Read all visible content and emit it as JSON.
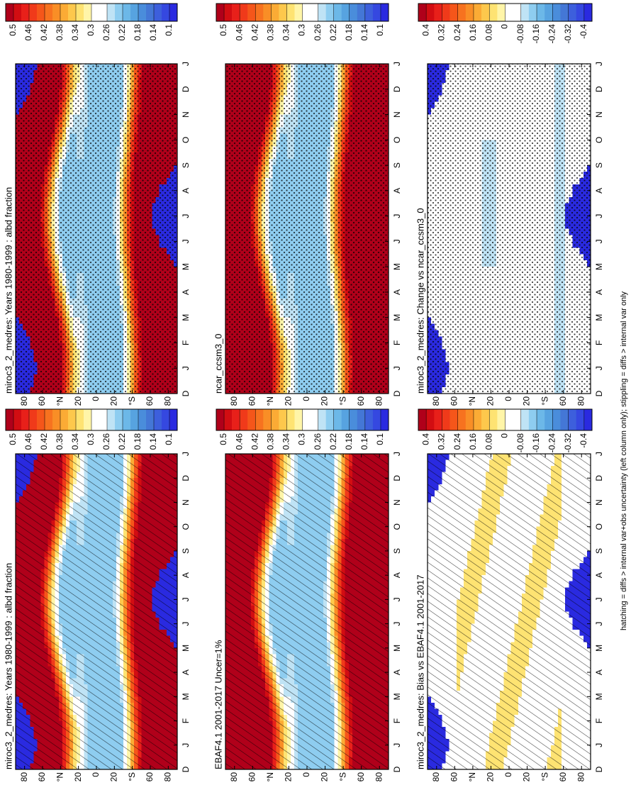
{
  "chart_data": [
    {
      "type": "heatmap",
      "title": "miroc3_2_medres: Years 1980-1999 : albd fraction",
      "categories": [
        "D",
        "J",
        "F",
        "M",
        "A",
        "M",
        "J",
        "J",
        "A",
        "S",
        "O",
        "N",
        "D",
        "J"
      ],
      "ylim": [
        -90,
        90
      ],
      "yticks": [
        80,
        60,
        {
          "value": 40,
          "label": "°N"
        },
        20,
        0,
        {
          "value": -20,
          "label": "20"
        },
        {
          "value": -40,
          "label": "°S"
        },
        {
          "value": -60,
          "label": "60"
        },
        {
          "value": -80,
          "label": "80"
        }
      ],
      "overlay": "hatching",
      "colorbar": {
        "clim": [
          0.52,
          0.08
        ],
        "ticks": [
          0.5,
          0.46,
          0.42,
          0.38,
          0.34,
          0.3,
          0.26,
          0.22,
          0.18,
          0.14,
          0.1
        ],
        "colors": [
          "#b0001a",
          "#d20d12",
          "#e8201a",
          "#f03a1a",
          "#f5561a",
          "#f7721f",
          "#f98e26",
          "#fbab35",
          "#fdc84c",
          "#fee372",
          "#fff5a8",
          "#ffffff",
          "#ffffff",
          "#bfe3f5",
          "#8ecdf0",
          "#6cb8e8",
          "#57a3e0",
          "#4a8ddb",
          "#4477d6",
          "#3d5fdc",
          "#3548e0",
          "#2a2ae0"
        ]
      }
    },
    {
      "type": "heatmap",
      "title": "miroc3_2_medres: Years 1980-1999 : albd fraction",
      "categories": [
        "D",
        "J",
        "F",
        "M",
        "A",
        "M",
        "J",
        "J",
        "A",
        "S",
        "O",
        "N",
        "D",
        "J"
      ],
      "ylim": [
        -90,
        90
      ],
      "yticks": [
        80,
        60,
        {
          "value": 40,
          "label": "°N"
        },
        20,
        0,
        {
          "value": -20,
          "label": "20"
        },
        {
          "value": -40,
          "label": "°S"
        },
        {
          "value": -60,
          "label": "60"
        },
        {
          "value": -80,
          "label": "80"
        }
      ],
      "overlay": "stippling",
      "colorbar": {
        "clim": [
          0.52,
          0.08
        ],
        "ticks": [
          0.5,
          0.46,
          0.42,
          0.38,
          0.34,
          0.3,
          0.26,
          0.22,
          0.18,
          0.14,
          0.1
        ],
        "colors": [
          "#b0001a",
          "#d20d12",
          "#e8201a",
          "#f03a1a",
          "#f5561a",
          "#f7721f",
          "#f98e26",
          "#fbab35",
          "#fdc84c",
          "#fee372",
          "#fff5a8",
          "#ffffff",
          "#ffffff",
          "#bfe3f5",
          "#8ecdf0",
          "#6cb8e8",
          "#57a3e0",
          "#4a8ddb",
          "#4477d6",
          "#3d5fdc",
          "#3548e0",
          "#2a2ae0"
        ]
      }
    },
    {
      "type": "heatmap",
      "title": "EBAF4.1 2001-2017 Uncer=1%",
      "categories": [
        "D",
        "J",
        "F",
        "M",
        "A",
        "M",
        "J",
        "J",
        "A",
        "S",
        "O",
        "N",
        "D",
        "J"
      ],
      "ylim": [
        -90,
        90
      ],
      "yticks": [
        80,
        60,
        {
          "value": 40,
          "label": "°N"
        },
        20,
        0,
        {
          "value": -20,
          "label": "20"
        },
        {
          "value": -40,
          "label": "°S"
        },
        {
          "value": -60,
          "label": "60"
        },
        {
          "value": -80,
          "label": "80"
        }
      ],
      "overlay": "hatching",
      "colorbar": {
        "clim": [
          0.52,
          0.08
        ],
        "ticks": [
          0.5,
          0.46,
          0.42,
          0.38,
          0.34,
          0.3,
          0.26,
          0.22,
          0.18,
          0.14,
          0.1
        ],
        "colors": [
          "#b0001a",
          "#d20d12",
          "#e8201a",
          "#f03a1a",
          "#f5561a",
          "#f7721f",
          "#f98e26",
          "#fbab35",
          "#fdc84c",
          "#fee372",
          "#fff5a8",
          "#ffffff",
          "#ffffff",
          "#bfe3f5",
          "#8ecdf0",
          "#6cb8e8",
          "#57a3e0",
          "#4a8ddb",
          "#4477d6",
          "#3d5fdc",
          "#3548e0",
          "#2a2ae0"
        ]
      }
    },
    {
      "type": "heatmap",
      "title": "ncar_ccsm3_0",
      "categories": [
        "D",
        "J",
        "F",
        "M",
        "A",
        "M",
        "J",
        "J",
        "A",
        "S",
        "O",
        "N",
        "D",
        "J"
      ],
      "ylim": [
        -90,
        90
      ],
      "yticks": [
        80,
        60,
        {
          "value": 40,
          "label": "°N"
        },
        20,
        0,
        {
          "value": -20,
          "label": "20"
        },
        {
          "value": -40,
          "label": "°S"
        },
        {
          "value": -60,
          "label": "60"
        },
        {
          "value": -80,
          "label": "80"
        }
      ],
      "overlay": "stippling",
      "colorbar": {
        "clim": [
          0.52,
          0.08
        ],
        "ticks": [
          0.5,
          0.46,
          0.42,
          0.38,
          0.34,
          0.3,
          0.26,
          0.22,
          0.18,
          0.14,
          0.1
        ],
        "colors": [
          "#b0001a",
          "#d20d12",
          "#e8201a",
          "#f03a1a",
          "#f5561a",
          "#f7721f",
          "#f98e26",
          "#fbab35",
          "#fdc84c",
          "#fee372",
          "#fff5a8",
          "#ffffff",
          "#ffffff",
          "#bfe3f5",
          "#8ecdf0",
          "#6cb8e8",
          "#57a3e0",
          "#4a8ddb",
          "#4477d6",
          "#3d5fdc",
          "#3548e0",
          "#2a2ae0"
        ]
      }
    },
    {
      "type": "heatmap",
      "title": "miroc3_2_medres: Bias vs EBAF4.1 2001-2017",
      "categories": [
        "D",
        "J",
        "F",
        "M",
        "A",
        "M",
        "J",
        "J",
        "A",
        "S",
        "O",
        "N",
        "D",
        "J"
      ],
      "ylim": [
        -90,
        90
      ],
      "yticks": [
        80,
        60,
        {
          "value": 40,
          "label": "°N"
        },
        20,
        0,
        {
          "value": -20,
          "label": "20"
        },
        {
          "value": -40,
          "label": "°S"
        },
        {
          "value": -60,
          "label": "60"
        },
        {
          "value": -80,
          "label": "80"
        }
      ],
      "overlay": "hatching",
      "colorbar": {
        "clim": [
          0.44,
          -0.44
        ],
        "ticks": [
          0.4,
          0.32,
          0.24,
          0.16,
          0.08,
          0,
          -0.08,
          -0.16,
          -0.24,
          -0.32,
          -0.4
        ],
        "colors": [
          "#b0001a",
          "#d20d12",
          "#e8201a",
          "#f03a1a",
          "#f5561a",
          "#f7721f",
          "#f98e26",
          "#fbab35",
          "#fdc84c",
          "#fee372",
          "#fff5a8",
          "#ffffff",
          "#ffffff",
          "#bfe3f5",
          "#8ecdf0",
          "#6cb8e8",
          "#57a3e0",
          "#4a8ddb",
          "#4477d6",
          "#3d5fdc",
          "#3548e0",
          "#2a2ae0"
        ]
      }
    },
    {
      "type": "heatmap",
      "title": "miroc3_2_medres: Change vs ncar_ccsm3_0",
      "categories": [
        "D",
        "J",
        "F",
        "M",
        "A",
        "M",
        "J",
        "J",
        "A",
        "S",
        "O",
        "N",
        "D",
        "J"
      ],
      "ylim": [
        -90,
        90
      ],
      "yticks": [
        80,
        60,
        {
          "value": 40,
          "label": "°N"
        },
        20,
        0,
        {
          "value": -20,
          "label": "20"
        },
        {
          "value": -40,
          "label": "°S"
        },
        {
          "value": -60,
          "label": "60"
        },
        {
          "value": -80,
          "label": "80"
        }
      ],
      "overlay": "stippling",
      "colorbar": {
        "clim": [
          0.44,
          -0.44
        ],
        "ticks": [
          0.4,
          0.32,
          0.24,
          0.16,
          0.08,
          0,
          -0.08,
          -0.16,
          -0.24,
          -0.32,
          -0.4
        ],
        "colors": [
          "#b0001a",
          "#d20d12",
          "#e8201a",
          "#f03a1a",
          "#f5561a",
          "#f7721f",
          "#f98e26",
          "#fbab35",
          "#fdc84c",
          "#fee372",
          "#fff5a8",
          "#ffffff",
          "#ffffff",
          "#bfe3f5",
          "#8ecdf0",
          "#6cb8e8",
          "#57a3e0",
          "#4a8ddb",
          "#4477d6",
          "#3d5fdc",
          "#3548e0",
          "#2a2ae0"
        ]
      }
    }
  ],
  "footer": "hatching = diffs > internal var+obs uncertainty (left column only); stippling = diffs > internal var only"
}
